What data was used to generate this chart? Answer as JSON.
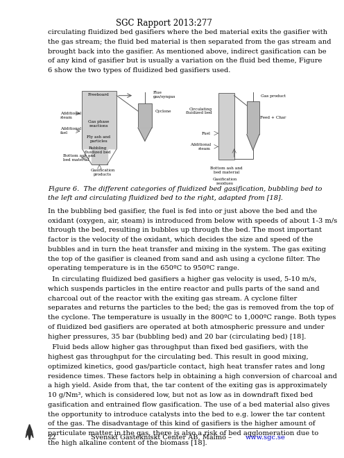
{
  "title": "SGC Rapport 2013:277",
  "footer_center": "Svenskt Gastekniskt Center AB, Malmö – ",
  "footer_url": "www.sgc.se",
  "footer_url_color": "#0000cc",
  "background_color": "#ffffff",
  "text_color": "#000000",
  "figure_caption": "Figure 6.  The different categories of fluidized bed gasification, bubbling bed to the left and circulating fluidized bed to the right, adapted from [18].",
  "body_paragraphs": [
    "circulating fluidized bed gasifiers where the bed material exits the gasifier with the gas stream; the fluid bed material is then separated from the gas stream and brought back into the gasifier. As mentioned above, indirect gasification can be of any kind of gasifier but is usually a variation on the fluid bed theme, Figure 6 show the two types of fluidized bed gasifiers used.",
    "In the bubbling bed gasifier, the fuel is fed into or just above the bed and the oxidant (oxygen, air, steam) is introduced from below with speeds of about 1-3 m/s through the bed, resulting in bubbles up through the bed. The most important factor is the velocity of the oxidant, which decides the size and speed of the bubbles and in turn the heat transfer and mixing in the system. The gas exiting the top of the gasifier is cleaned from sand and ash using a cyclone filter. The operating temperature is in the 650ºC to 950ºC range.",
    "  In circulating fluidized bed gasifiers a higher gas velocity is used, 5-10 m/s, which suspends particles in the entire reactor and pulls parts of the sand and charcoal out of the reactor with the exiting gas stream. A cyclone filter separates and returns the particles to the bed; the gas is removed from the top of the cyclone. The temperature is usually in the 800ºC to 1,000ºC range. Both types of fluidized bed gasifiers are operated at both atmospheric pressure and under higher pressures, 35 bar (bubbling bed) and 20 bar (circulating bed) [18].",
    "  Fluid beds allow higher gas throughput than fixed bed gasifiers, with the highest gas throughput for the circulating bed. This result in good mixing, optimized kinetics, good gas/particle contact, high heat transfer rates and long residence times. These factors help in obtaining a high conversion of charcoal and a high yield. Aside from that, the tar content of the exiting gas is approximately 10 g/Nm³, which is considered low, but not as low as in downdraft fixed bed gasification and entrained flow gasification. The use of a bed material also gives the opportunity to introduce catalysts into the bed to e.g. lower the tar content of the gas. The disadvantage of this kind of gasifiers is the higher amount of particulate matter in the gas, there is also a risk of bed agglomeration due to the high alkaline content of the biomass [18]."
  ],
  "lm": 0.13,
  "rm": 0.965,
  "bfs": 7.1,
  "lh": 0.0215,
  "title_fs": 8.5,
  "cap_fs": 7.0,
  "footer_fs": 7.0,
  "cpline": 82
}
